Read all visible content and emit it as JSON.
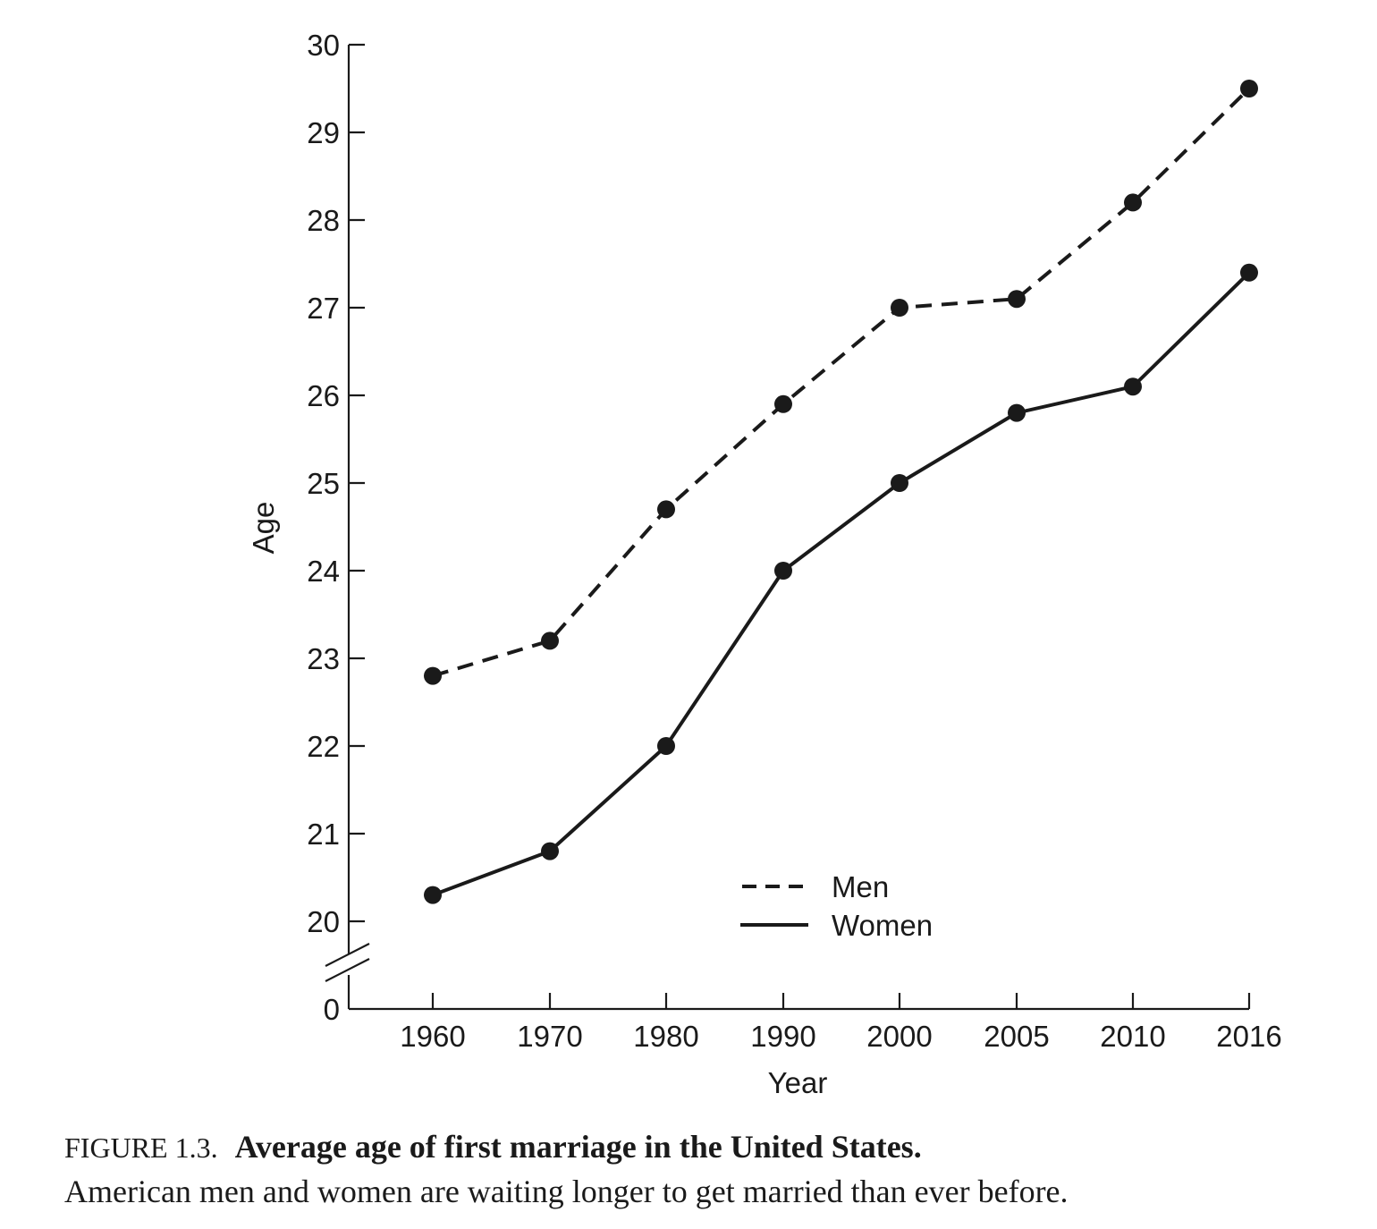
{
  "chart_data": {
    "type": "line",
    "categories": [
      "1960",
      "1970",
      "1980",
      "1990",
      "2000",
      "2005",
      "2010",
      "2016"
    ],
    "series": [
      {
        "name": "Men",
        "line_style": "dashed",
        "values": [
          22.8,
          23.2,
          24.7,
          25.9,
          27.0,
          27.1,
          28.2,
          29.5
        ]
      },
      {
        "name": "Women",
        "line_style": "solid",
        "values": [
          20.3,
          20.8,
          22.0,
          24.0,
          25.0,
          25.8,
          26.1,
          27.4
        ]
      }
    ],
    "xlabel": "Year",
    "ylabel": "Age",
    "ylim": [
      20,
      30
    ],
    "yticks": [
      "30",
      "29",
      "28",
      "27",
      "26",
      "25",
      "24",
      "23",
      "22",
      "21",
      "20",
      "0"
    ],
    "y_axis_break": true,
    "legend_position": "bottom-center",
    "grid": false,
    "line_color": "#1a1a1a"
  },
  "caption": {
    "label": "FIGURE 1.3.",
    "title": "Average age of first marriage in the United States.",
    "text": "American men and women are waiting longer to get married than ever before."
  }
}
